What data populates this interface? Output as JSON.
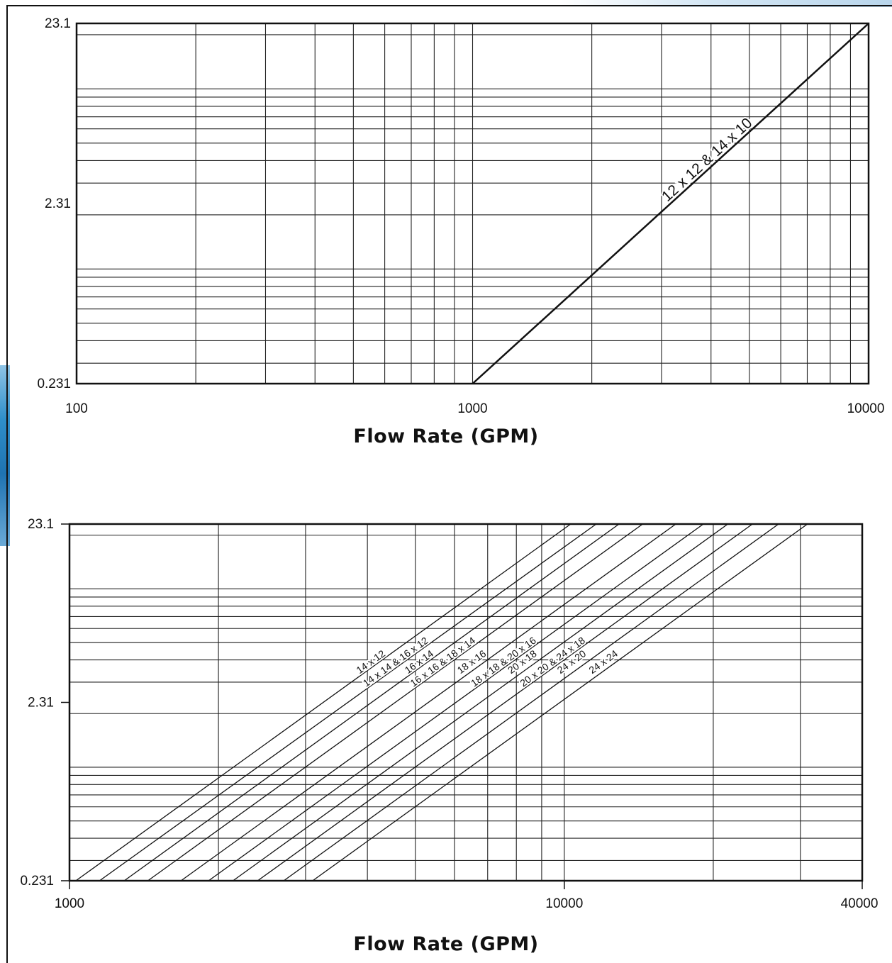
{
  "chart_data": [
    {
      "type": "line",
      "title": "",
      "xlabel": "Flow Rate (GPM)",
      "ylabel": "",
      "x_scale": "log",
      "y_scale": "log",
      "xlim": [
        100,
        10000
      ],
      "ylim": [
        0.231,
        23.1
      ],
      "x_tick_labels": [
        "100",
        "1000",
        "10000"
      ],
      "y_tick_labels": [
        "0.231",
        "2.31",
        "23.1"
      ],
      "grid": true,
      "series": [
        {
          "name": "12 x 12 & 14 x 10",
          "x": [
            1000,
            10000
          ],
          "y": [
            0.231,
            23.1
          ]
        }
      ]
    },
    {
      "type": "line",
      "title": "",
      "xlabel": "Flow Rate (GPM)",
      "ylabel": "",
      "x_scale": "log",
      "y_scale": "log",
      "xlim": [
        1000,
        40000
      ],
      "ylim": [
        0.231,
        23.1
      ],
      "x_tick_labels": [
        "1000",
        "10000",
        "40000"
      ],
      "y_tick_labels": [
        "0.231",
        "2.31",
        "23.1"
      ],
      "grid": true,
      "series": [
        {
          "name": "14 x 12",
          "x": [
            1030,
            10300
          ],
          "y": [
            0.231,
            23.1
          ]
        },
        {
          "name": "14 x 14 & 16 x 12",
          "x": [
            1150,
            11600
          ],
          "y": [
            0.231,
            23.1
          ]
        },
        {
          "name": "16 x 14",
          "x": [
            1290,
            12900
          ],
          "y": [
            0.231,
            23.1
          ]
        },
        {
          "name": "16 x 16 & 18 x 14",
          "x": [
            1440,
            14400
          ],
          "y": [
            0.231,
            23.1
          ]
        },
        {
          "name": "18 x 16",
          "x": [
            1680,
            16800
          ],
          "y": [
            0.231,
            23.1
          ]
        },
        {
          "name": "18 x 18 & 20 x 16",
          "x": [
            1910,
            19100
          ],
          "y": [
            0.231,
            23.1
          ]
        },
        {
          "name": "20 x 18",
          "x": [
            2140,
            21400
          ],
          "y": [
            0.231,
            23.1
          ]
        },
        {
          "name": "20 x 20 & 24 x 18",
          "x": [
            2400,
            24000
          ],
          "y": [
            0.231,
            23.1
          ]
        },
        {
          "name": "24 x 20",
          "x": [
            2710,
            27100
          ],
          "y": [
            0.231,
            23.1
          ]
        },
        {
          "name": "24 x 24",
          "x": [
            3100,
            31000
          ],
          "y": [
            0.231,
            23.1
          ]
        }
      ]
    }
  ]
}
